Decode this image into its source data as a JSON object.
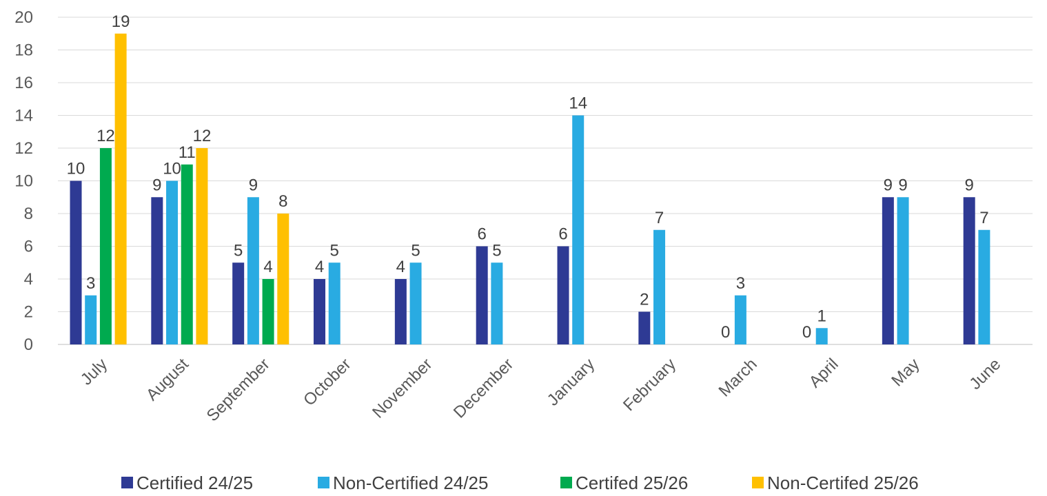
{
  "chart_data": {
    "type": "bar",
    "title": "",
    "xlabel": "",
    "ylabel": "",
    "ylim": [
      0,
      20
    ],
    "yticks": [
      0,
      2,
      4,
      6,
      8,
      10,
      12,
      14,
      16,
      18,
      20
    ],
    "grid": "horizontal",
    "legend_position": "bottom",
    "categories": [
      "July",
      "August",
      "September",
      "October",
      "November",
      "December",
      "January",
      "February",
      "March",
      "April",
      "May",
      "June"
    ],
    "series": [
      {
        "name": "Certified 24/25",
        "color": "#2E3A94",
        "values": [
          10,
          9,
          5,
          4,
          4,
          6,
          6,
          2,
          0,
          0,
          9,
          9
        ]
      },
      {
        "name": "Non-Certified 24/25",
        "color": "#29ABE2",
        "values": [
          3,
          10,
          9,
          5,
          5,
          5,
          14,
          7,
          3,
          1,
          9,
          7
        ]
      },
      {
        "name": "Certifed 25/26",
        "color": "#00AA4F",
        "values": [
          12,
          11,
          4,
          null,
          null,
          null,
          null,
          null,
          null,
          null,
          null,
          null
        ]
      },
      {
        "name": "Non-Certifed 25/26",
        "color": "#FFC000",
        "values": [
          19,
          12,
          8,
          null,
          null,
          null,
          null,
          null,
          null,
          null,
          null,
          null
        ]
      }
    ]
  }
}
